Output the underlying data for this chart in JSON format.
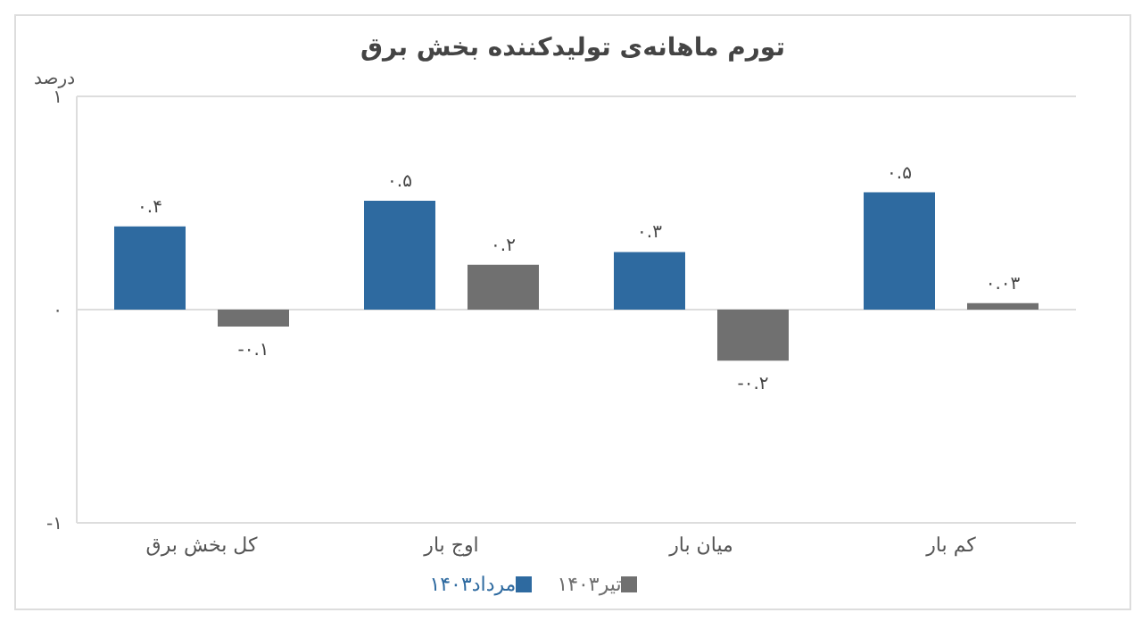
{
  "chart_data": {
    "type": "bar",
    "title": "تورم ماهانه‌ی تولیدکننده بخش برق",
    "ylabel": "درصد",
    "categories": [
      "کل بخش برق",
      "اوج بار",
      "میان بار",
      "کم بار"
    ],
    "series": [
      {
        "name": "مرداد۱۴۰۳",
        "color": "#2e6aa0",
        "values": [
          0.39,
          0.51,
          0.27,
          0.55
        ],
        "value_labels": [
          "۰.۴",
          "۰.۵",
          "۰.۳",
          "۰.۵"
        ]
      },
      {
        "name": "تیر۱۴۰۳",
        "color": "#707070",
        "values": [
          -0.08,
          0.21,
          -0.24,
          0.03
        ],
        "value_labels": [
          "-۰.۱",
          "۰.۲",
          "-۰.۲",
          "۰.۰۳"
        ]
      }
    ],
    "ylim": [
      -1,
      1
    ],
    "yticks": [
      {
        "value": -1,
        "label": "-۱"
      },
      {
        "value": 0,
        "label": "۰"
      },
      {
        "value": 1,
        "label": "۱"
      }
    ],
    "grid": "y",
    "legend": "bottom"
  }
}
